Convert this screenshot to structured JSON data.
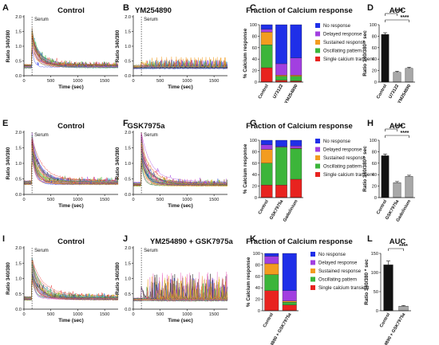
{
  "colors": {
    "no_response": "#1f2fe8",
    "delayed_response": "#a23fe0",
    "sustained_response": "#f39c1f",
    "oscillating_pattern": "#3cb53a",
    "single_calcium_transient": "#e8231f",
    "bar_dark": "#111111",
    "bar_gray": "#a8a8a8",
    "trace_palette": [
      "#e8231f",
      "#1f2fe8",
      "#3cb53a",
      "#f39c1f",
      "#a23fe0",
      "#d4c21a",
      "#1aa6c9",
      "#111111",
      "#8a5a2b",
      "#e86fc0"
    ]
  },
  "chart_data": [
    {
      "id": "A",
      "type": "line",
      "panel_label": "A",
      "title": "Control",
      "annotation": "Serum",
      "xlabel": "Time (sec)",
      "ylabel": "Ratio 340/380",
      "xlim": [
        0,
        1750
      ],
      "ylim": [
        0,
        2.0
      ],
      "xticks": [
        0,
        500,
        1000,
        1500
      ],
      "yticks": [
        0.0,
        0.5,
        1.0,
        1.5,
        2.0
      ],
      "ytick_labels": [
        "0.0",
        "0.5",
        "1.0",
        "1.5",
        "2.0"
      ],
      "serum_time": 150,
      "baseline": 0.32,
      "peak": 1.15,
      "pattern": "transient_decay",
      "n_traces": 34
    },
    {
      "id": "B",
      "type": "line",
      "panel_label": "B",
      "title": "YM254890",
      "annotation": "Serum",
      "xlabel": "Time (sec)",
      "ylabel": "Ratio 340/380",
      "xlim": [
        0,
        1750
      ],
      "ylim": [
        0,
        2.0
      ],
      "xticks": [
        0,
        500,
        1000,
        1500
      ],
      "yticks": [
        0.0,
        0.5,
        1.0,
        1.5,
        2.0
      ],
      "ytick_labels": [
        "0.0",
        "0.5",
        "1.0",
        "1.5",
        "2.0"
      ],
      "serum_time": 150,
      "baseline": 0.3,
      "peak": 0.45,
      "pattern": "oscillating_low",
      "n_traces": 28
    },
    {
      "id": "C",
      "type": "bar",
      "stacked": true,
      "panel_label": "C",
      "title": "Fraction of Calcium response",
      "ylabel": "% Calcium response",
      "ylim": [
        0,
        100
      ],
      "yticks": [
        0,
        20,
        40,
        60,
        80,
        100
      ],
      "categories": [
        "Control",
        "U73122",
        "YM254890"
      ],
      "series": [
        {
          "name": "Single calcium transient",
          "color_key": "single_calcium_transient",
          "values": [
            25,
            3,
            2
          ]
        },
        {
          "name": "Oscillating pattern",
          "color_key": "oscillating_pattern",
          "values": [
            40,
            7,
            8
          ]
        },
        {
          "name": "Sustained response",
          "color_key": "sustained_response",
          "values": [
            22,
            2,
            2
          ]
        },
        {
          "name": "Delayed response",
          "color_key": "delayed_response",
          "values": [
            5,
            20,
            30
          ]
        },
        {
          "name": "No response",
          "color_key": "no_response",
          "values": [
            8,
            68,
            58
          ]
        }
      ],
      "legend": [
        "No response",
        "Delayed response",
        "Sustained response",
        "Oscillating pattern",
        "Single calcium transient"
      ]
    },
    {
      "id": "D",
      "type": "bar",
      "panel_label": "D",
      "title": "AUC",
      "ylabel": "Ratio 340/380 * sec",
      "ylim": [
        0,
        100
      ],
      "yticks": [
        0,
        20,
        40,
        60,
        80,
        100
      ],
      "categories": [
        "Control",
        "U73122",
        "YM254890"
      ],
      "values": [
        83,
        17,
        24
      ],
      "errors": [
        3,
        2,
        2
      ],
      "bar_colors": [
        "bar_dark",
        "bar_gray",
        "bar_gray"
      ],
      "significance": [
        {
          "from": 0,
          "to": 2,
          "label": "****"
        },
        {
          "from": 0,
          "to": 1,
          "label": "****"
        }
      ]
    },
    {
      "id": "E",
      "type": "line",
      "panel_label": "E",
      "title": "Control",
      "annotation": "Serum",
      "xlabel": "Time (sec)",
      "ylabel": "Ratio 340/380",
      "xlim": [
        0,
        1750
      ],
      "ylim": [
        0,
        2.0
      ],
      "xticks": [
        0,
        500,
        1000,
        1500
      ],
      "yticks": [
        0.0,
        0.5,
        1.0,
        1.5,
        2.0
      ],
      "ytick_labels": [
        "0.0",
        "0.5",
        "1.0",
        "1.5",
        "2.0"
      ],
      "serum_time": 150,
      "baseline": 0.38,
      "peak": 1.45,
      "pattern": "transient_decay",
      "n_traces": 36
    },
    {
      "id": "F",
      "type": "line",
      "panel_label": "F",
      "title": "GSK7975a",
      "annotation": "Serum",
      "xlabel": "Time (sec)",
      "ylabel": "Ratio 340/380",
      "xlim": [
        0,
        1750
      ],
      "ylim": [
        0,
        2.0
      ],
      "xticks": [
        0,
        500,
        1000,
        1500
      ],
      "yticks": [
        0.0,
        0.5,
        1.0,
        1.5,
        2.0
      ],
      "ytick_labels": [
        "0.0",
        "0.5",
        "1.0",
        "1.5",
        "2.0"
      ],
      "serum_time": 150,
      "baseline": 0.33,
      "peak": 1.5,
      "pattern": "transient_decay",
      "n_traces": 36
    },
    {
      "id": "G",
      "type": "bar",
      "stacked": true,
      "panel_label": "G",
      "title": "Fraction of Calcium response",
      "ylabel": "% Calcium response",
      "ylim": [
        0,
        100
      ],
      "yticks": [
        0,
        20,
        40,
        60,
        80,
        100
      ],
      "categories": [
        "Control",
        "GSK7975a",
        "Gadolinium"
      ],
      "series": [
        {
          "name": "Single calcium transient",
          "color_key": "single_calcium_transient",
          "values": [
            22,
            22,
            32
          ]
        },
        {
          "name": "Oscillating pattern",
          "color_key": "oscillating_pattern",
          "values": [
            38,
            66,
            53
          ]
        },
        {
          "name": "Sustained response",
          "color_key": "sustained_response",
          "values": [
            24,
            0,
            1
          ]
        },
        {
          "name": "Delayed response",
          "color_key": "delayed_response",
          "values": [
            8,
            1,
            4
          ]
        },
        {
          "name": "No response",
          "color_key": "no_response",
          "values": [
            8,
            11,
            10
          ]
        }
      ],
      "legend": [
        "No response",
        "Delayed response",
        "Sustained response",
        "Oscillating pattern",
        "Single calcium transient"
      ]
    },
    {
      "id": "H",
      "type": "bar",
      "panel_label": "H",
      "title": "AUC",
      "ylabel": "Ratio 340/380 * sec",
      "ylim": [
        0,
        100
      ],
      "yticks": [
        0,
        20,
        40,
        60,
        80,
        100
      ],
      "categories": [
        "Control",
        "GSK7975a",
        "Gadolinium"
      ],
      "values": [
        73,
        26,
        37
      ],
      "errors": [
        3,
        2,
        2
      ],
      "bar_colors": [
        "bar_dark",
        "bar_gray",
        "bar_gray"
      ],
      "significance": [
        {
          "from": 0,
          "to": 2,
          "label": "****"
        },
        {
          "from": 0,
          "to": 1,
          "label": "****"
        }
      ]
    },
    {
      "id": "I",
      "type": "line",
      "panel_label": "I",
      "title": "Control",
      "annotation": "Serum",
      "xlabel": "Time (sec)",
      "ylabel": "Ratio 340/380",
      "xlim": [
        0,
        1750
      ],
      "ylim": [
        0,
        2.0
      ],
      "xticks": [
        0,
        500,
        1000,
        1500
      ],
      "yticks": [
        0.0,
        0.5,
        1.0,
        1.5,
        2.0
      ],
      "ytick_labels": [
        "0.0",
        "0.5",
        "1.0",
        "1.5",
        "2.0"
      ],
      "serum_time": 150,
      "baseline": 0.35,
      "peak": 1.2,
      "pattern": "transient_decay",
      "n_traces": 34
    },
    {
      "id": "J",
      "type": "line",
      "panel_label": "J",
      "title": "YM254890 + GSK7975a",
      "annotation": "Serum",
      "xlabel": "Time (sec)",
      "ylabel": "Ratio 340/380",
      "xlim": [
        0,
        1750
      ],
      "ylim": [
        0,
        2.0
      ],
      "xticks": [
        0,
        500,
        1000,
        1500
      ],
      "yticks": [
        0.0,
        0.5,
        1.0,
        1.5,
        2.0
      ],
      "ytick_labels": [
        "0.0",
        "0.5",
        "1.0",
        "1.5",
        "2.0"
      ],
      "serum_time": 150,
      "baseline": 0.32,
      "peak": 0.75,
      "pattern": "oscillating_spikes",
      "n_traces": 26
    },
    {
      "id": "K",
      "type": "bar",
      "stacked": true,
      "panel_label": "K",
      "title": "Fraction of Calcium response",
      "ylabel": "% Calcium response",
      "ylim": [
        0,
        100
      ],
      "yticks": [
        0,
        20,
        40,
        60,
        80,
        100
      ],
      "categories": [
        "Control",
        "YM254890 + GSK7975a"
      ],
      "series": [
        {
          "name": "Single calcium transient",
          "color_key": "single_calcium_transient",
          "values": [
            35,
            10
          ]
        },
        {
          "name": "Oscillating pattern",
          "color_key": "oscillating_pattern",
          "values": [
            28,
            5
          ]
        },
        {
          "name": "Sustained response",
          "color_key": "sustained_response",
          "values": [
            19,
            2
          ]
        },
        {
          "name": "Delayed response",
          "color_key": "delayed_response",
          "values": [
            13,
            18
          ]
        },
        {
          "name": "No response",
          "color_key": "no_response",
          "values": [
            5,
            65
          ]
        }
      ],
      "legend": [
        "No response",
        "Delayed response",
        "Sustained response",
        "Oscillating pattern",
        "Single calcium transient"
      ]
    },
    {
      "id": "L",
      "type": "bar",
      "panel_label": "L",
      "title": "AUC",
      "ylabel": "Ratio 340/380 * sec",
      "ylim": [
        0,
        150
      ],
      "yticks": [
        0,
        50,
        100,
        150
      ],
      "categories": [
        "Control",
        "YM254890 + GSK7975a"
      ],
      "values": [
        120,
        12
      ],
      "errors": [
        10,
        2
      ],
      "bar_colors": [
        "bar_dark",
        "bar_gray"
      ],
      "significance": [
        {
          "from": 0,
          "to": 1,
          "label": "****"
        }
      ]
    }
  ]
}
